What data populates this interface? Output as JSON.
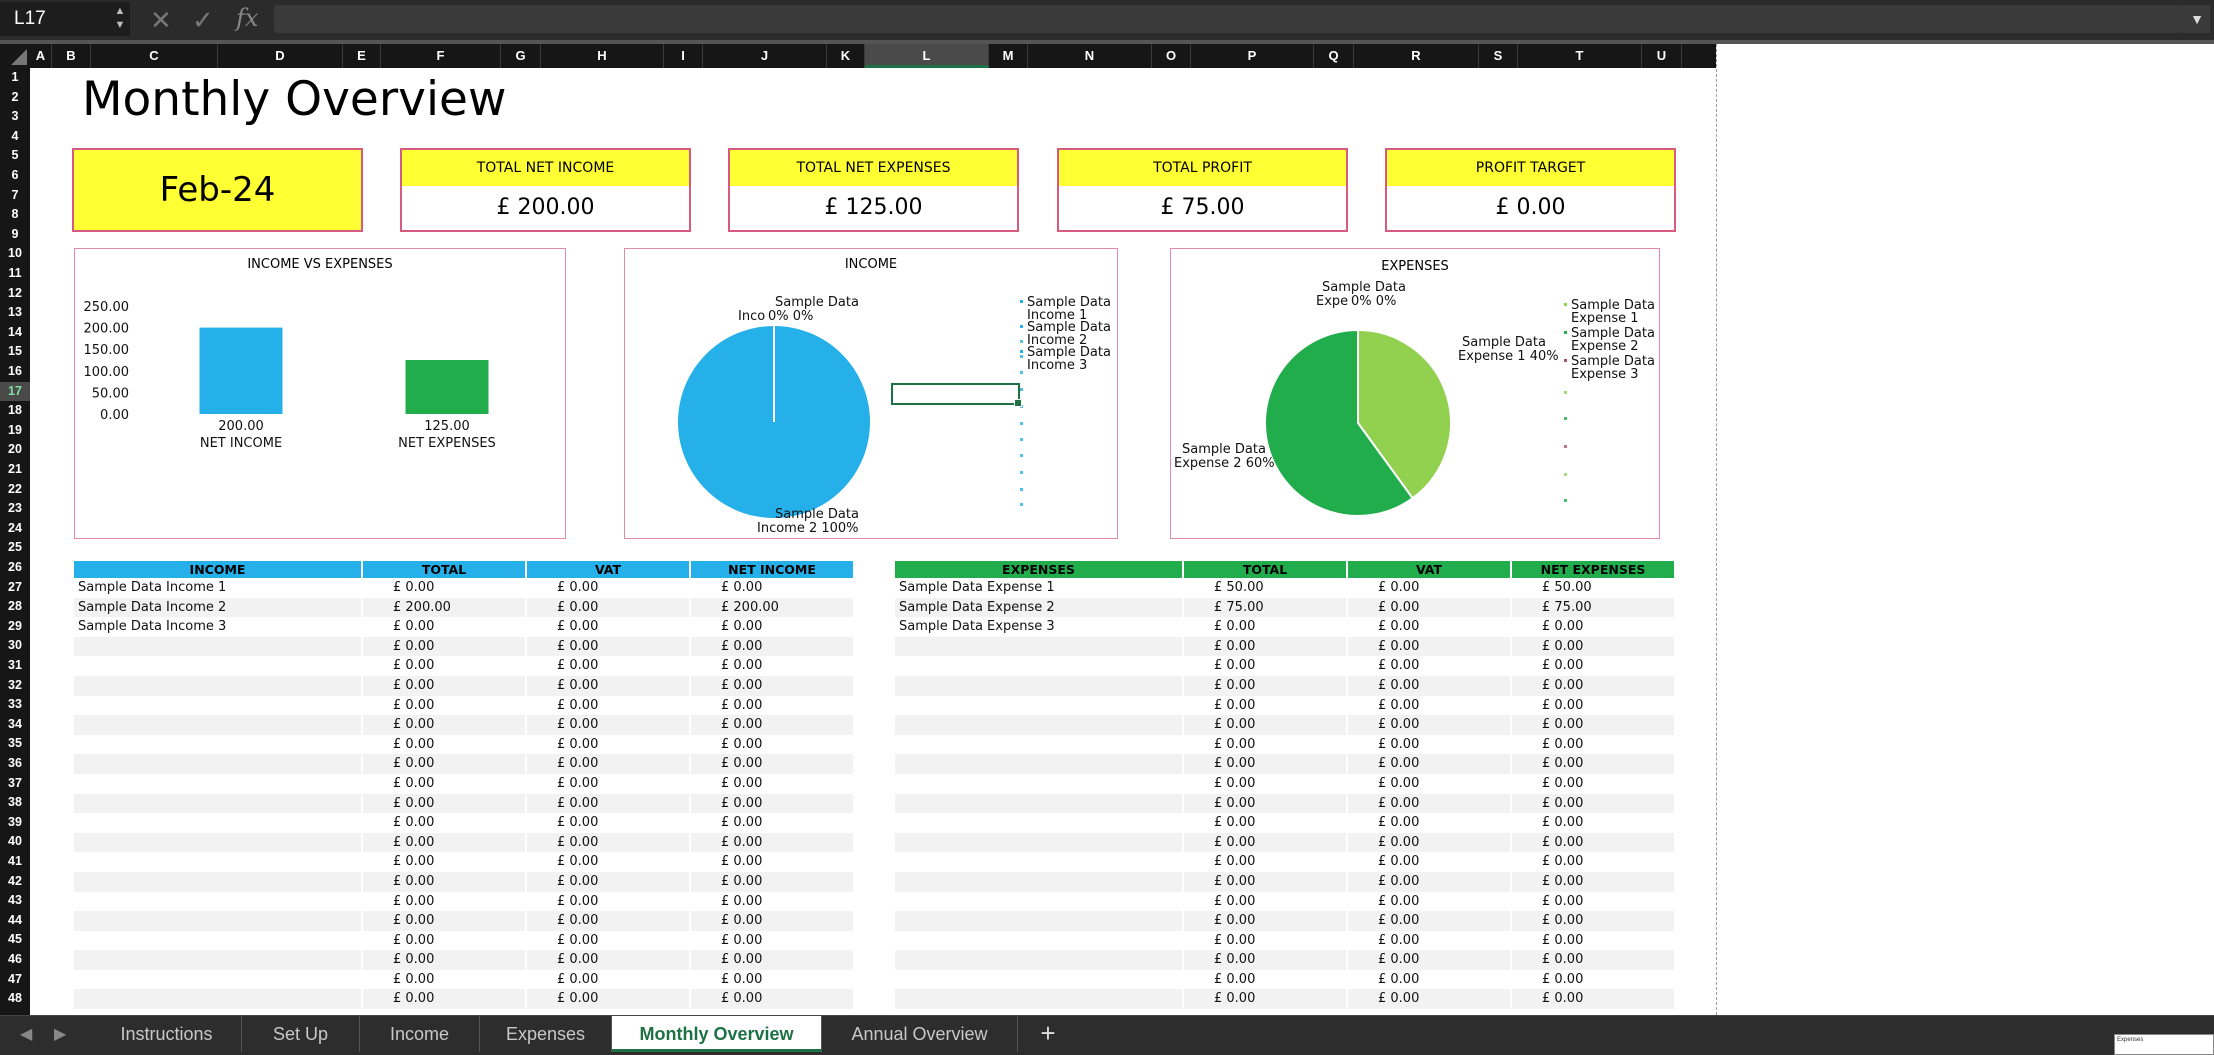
{
  "formula_bar": {
    "cell_ref": "L17",
    "cancel_icon": "x-icon",
    "confirm_icon": "check-icon",
    "fx_label": "fx",
    "formula": ""
  },
  "columns": [
    "A",
    "B",
    "C",
    "D",
    "E",
    "F",
    "G",
    "H",
    "I",
    "J",
    "K",
    "L",
    "M",
    "N",
    "O",
    "P",
    "Q",
    "R",
    "S",
    "T",
    "U"
  ],
  "selected_column": "L",
  "rows": [
    "1",
    "2",
    "3",
    "4",
    "5",
    "6",
    "7",
    "8",
    "9",
    "10",
    "11",
    "12",
    "13",
    "14",
    "15",
    "16",
    "17",
    "18",
    "19",
    "20",
    "21",
    "22",
    "23",
    "24",
    "25",
    "26",
    "27",
    "28",
    "29",
    "30",
    "31",
    "32",
    "33",
    "34",
    "35",
    "36",
    "37",
    "38",
    "39",
    "40",
    "41",
    "42",
    "43",
    "44",
    "45",
    "46",
    "47",
    "48"
  ],
  "selected_row": "17",
  "title": "Monthly Overview",
  "date": "Feb-24",
  "kpis": [
    {
      "label": "TOTAL NET INCOME",
      "value": "£  200.00"
    },
    {
      "label": "TOTAL NET EXPENSES",
      "value": "£  125.00"
    },
    {
      "label": "TOTAL PROFIT",
      "value": "£  75.00"
    },
    {
      "label": "PROFIT TARGET",
      "value": "£  0.00"
    }
  ],
  "chart_data": [
    {
      "type": "bar",
      "title": "INCOME VS EXPENSES",
      "categories": [
        "NET INCOME",
        "NET EXPENSES"
      ],
      "values": [
        200,
        125
      ],
      "data_labels": [
        "200.00",
        "125.00"
      ],
      "ylim": [
        0,
        250
      ],
      "yticks": [
        "250.00",
        "200.00",
        "150.00",
        "100.00",
        "50.00",
        "0.00"
      ],
      "colors": [
        "#26b0ea",
        "#22ad4c"
      ],
      "grid": false
    },
    {
      "type": "pie",
      "title": "INCOME",
      "categories": [
        "Sample Data Income 1",
        "Sample Data Income 2",
        "Sample Data Income 3"
      ],
      "values": [
        0,
        200,
        0
      ],
      "percent_labels": [
        "0%",
        "100%",
        "0%"
      ],
      "colors": [
        "#26b0ea",
        "#26b0ea",
        "#26b0ea"
      ],
      "legend": "right"
    },
    {
      "type": "pie",
      "title": "EXPENSES",
      "categories": [
        "Sample Data Expense 1",
        "Sample Data Expense 2",
        "Sample Data Expense 3"
      ],
      "values": [
        50,
        75,
        0
      ],
      "percent_labels": [
        "40%",
        "60%",
        "0%"
      ],
      "colors": [
        "#92d050",
        "#22ad4c",
        "#b0506a"
      ],
      "legend": "right"
    }
  ],
  "pie_labels": {
    "income_top_line1": "Sample Data",
    "income_top_line2": "Inco",
    "income_top_pcts": "0%  0%",
    "income_bottom_line1": "Sample Data",
    "income_bottom_line2": "Income 2 100%",
    "expense_top_line1": "Sample Data",
    "expense_top_line2": "Expe",
    "expense_top_pcts": "0%   0%",
    "expense_right_line1": "Sample Data",
    "expense_right_line2": "Expense 1 40%",
    "expense_left_line1": "Sample Data",
    "expense_left_line2": "Expense 2 60%"
  },
  "legends": {
    "income": [
      [
        "Sample Data",
        "Income 1"
      ],
      [
        "Sample Data",
        "Income 2"
      ],
      [
        "Sample Data",
        "Income 3"
      ]
    ],
    "expenses": [
      [
        "Sample Data",
        "Expense 1"
      ],
      [
        "Sample Data",
        "Expense 2"
      ],
      [
        "Sample Data",
        "Expense 3"
      ]
    ]
  },
  "income_table": {
    "headers": [
      "INCOME",
      "TOTAL",
      "VAT",
      "NET INCOME"
    ],
    "rows": [
      [
        "Sample Data Income 1",
        "£  0.00",
        "£  0.00",
        "£  0.00"
      ],
      [
        "Sample Data Income 2",
        "£  200.00",
        "£  0.00",
        "£  200.00"
      ],
      [
        "Sample Data Income 3",
        "£  0.00",
        "£  0.00",
        "£  0.00"
      ],
      [
        "",
        "£  0.00",
        "£  0.00",
        "£  0.00"
      ],
      [
        "",
        "£  0.00",
        "£  0.00",
        "£  0.00"
      ],
      [
        "",
        "£  0.00",
        "£  0.00",
        "£  0.00"
      ],
      [
        "",
        "£  0.00",
        "£  0.00",
        "£  0.00"
      ],
      [
        "",
        "£  0.00",
        "£  0.00",
        "£  0.00"
      ],
      [
        "",
        "£  0.00",
        "£  0.00",
        "£  0.00"
      ],
      [
        "",
        "£  0.00",
        "£  0.00",
        "£  0.00"
      ],
      [
        "",
        "£  0.00",
        "£  0.00",
        "£  0.00"
      ],
      [
        "",
        "£  0.00",
        "£  0.00",
        "£  0.00"
      ],
      [
        "",
        "£  0.00",
        "£  0.00",
        "£  0.00"
      ],
      [
        "",
        "£  0.00",
        "£  0.00",
        "£  0.00"
      ],
      [
        "",
        "£  0.00",
        "£  0.00",
        "£  0.00"
      ],
      [
        "",
        "£  0.00",
        "£  0.00",
        "£  0.00"
      ],
      [
        "",
        "£  0.00",
        "£  0.00",
        "£  0.00"
      ],
      [
        "",
        "£  0.00",
        "£  0.00",
        "£  0.00"
      ],
      [
        "",
        "£  0.00",
        "£  0.00",
        "£  0.00"
      ],
      [
        "",
        "£  0.00",
        "£  0.00",
        "£  0.00"
      ],
      [
        "",
        "£  0.00",
        "£  0.00",
        "£  0.00"
      ],
      [
        "",
        "£  0.00",
        "£  0.00",
        "£  0.00"
      ]
    ]
  },
  "expense_table": {
    "headers": [
      "EXPENSES",
      "TOTAL",
      "VAT",
      "NET EXPENSES"
    ],
    "rows": [
      [
        "Sample Data Expense 1",
        "£  50.00",
        "£  0.00",
        "£  50.00"
      ],
      [
        "Sample Data Expense 2",
        "£  75.00",
        "£  0.00",
        "£  75.00"
      ],
      [
        "Sample Data Expense 3",
        "£  0.00",
        "£  0.00",
        "£  0.00"
      ],
      [
        "",
        "£  0.00",
        "£  0.00",
        "£  0.00"
      ],
      [
        "",
        "£  0.00",
        "£  0.00",
        "£  0.00"
      ],
      [
        "",
        "£  0.00",
        "£  0.00",
        "£  0.00"
      ],
      [
        "",
        "£  0.00",
        "£  0.00",
        "£  0.00"
      ],
      [
        "",
        "£  0.00",
        "£  0.00",
        "£  0.00"
      ],
      [
        "",
        "£  0.00",
        "£  0.00",
        "£  0.00"
      ],
      [
        "",
        "£  0.00",
        "£  0.00",
        "£  0.00"
      ],
      [
        "",
        "£  0.00",
        "£  0.00",
        "£  0.00"
      ],
      [
        "",
        "£  0.00",
        "£  0.00",
        "£  0.00"
      ],
      [
        "",
        "£  0.00",
        "£  0.00",
        "£  0.00"
      ],
      [
        "",
        "£  0.00",
        "£  0.00",
        "£  0.00"
      ],
      [
        "",
        "£  0.00",
        "£  0.00",
        "£  0.00"
      ],
      [
        "",
        "£  0.00",
        "£  0.00",
        "£  0.00"
      ],
      [
        "",
        "£  0.00",
        "£  0.00",
        "£  0.00"
      ],
      [
        "",
        "£  0.00",
        "£  0.00",
        "£  0.00"
      ],
      [
        "",
        "£  0.00",
        "£  0.00",
        "£  0.00"
      ],
      [
        "",
        "£  0.00",
        "£  0.00",
        "£  0.00"
      ],
      [
        "",
        "£  0.00",
        "£  0.00",
        "£  0.00"
      ],
      [
        "",
        "£  0.00",
        "£  0.00",
        "£  0.00"
      ]
    ]
  },
  "sheet_tabs": [
    "Instructions",
    "Set Up",
    "Income",
    "Expenses",
    "Monthly Overview",
    "Annual Overview"
  ],
  "active_tab": "Monthly Overview",
  "add_tab_label": "+",
  "thumbnail_label": "Expenses",
  "colors": {
    "accent": "#1e7145",
    "income_blue": "#26b0ea",
    "expense_green": "#22ad4c",
    "light_green": "#92d050",
    "kpi_yellow": "#ffff33",
    "border_pink": "#d85a7f"
  }
}
